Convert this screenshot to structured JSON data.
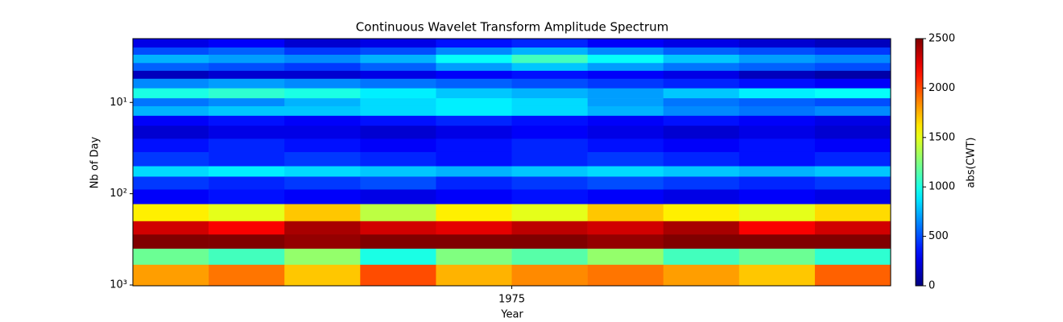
{
  "chart_data": {
    "type": "heatmap",
    "title": "Continuous Wavelet Transform Amplitude Spectrum",
    "xlabel": "Year",
    "ylabel": "Nb of Day",
    "colorbar_label": "abs(CWT)",
    "x_edges": [
      1970,
      1971,
      1972,
      1973,
      1974,
      1975,
      1976,
      1977,
      1978,
      1979,
      1980
    ],
    "y_edges": [
      2,
      2.5,
      3,
      3.7,
      4.5,
      5.5,
      7,
      9,
      11,
      14,
      18,
      25,
      35,
      50,
      65,
      90,
      130,
      200,
      280,
      400,
      600,
      1020
    ],
    "z": [
      [
        250,
        300,
        200,
        250,
        350,
        400,
        300,
        250,
        200,
        150
      ],
      [
        500,
        550,
        450,
        500,
        650,
        750,
        650,
        550,
        500,
        450
      ],
      [
        750,
        700,
        650,
        750,
        950,
        1100,
        950,
        800,
        700,
        650
      ],
      [
        550,
        500,
        450,
        550,
        700,
        800,
        700,
        600,
        550,
        500
      ],
      [
        150,
        200,
        200,
        250,
        300,
        350,
        300,
        250,
        150,
        100
      ],
      [
        650,
        700,
        650,
        600,
        550,
        500,
        450,
        400,
        350,
        300
      ],
      [
        1000,
        1050,
        1000,
        900,
        800,
        750,
        700,
        800,
        900,
        950
      ],
      [
        600,
        650,
        750,
        850,
        900,
        850,
        700,
        600,
        550,
        500
      ],
      [
        750,
        800,
        800,
        850,
        900,
        850,
        750,
        650,
        600,
        650
      ],
      [
        300,
        350,
        300,
        350,
        400,
        350,
        300,
        350,
        300,
        250
      ],
      [
        200,
        250,
        250,
        200,
        250,
        300,
        250,
        200,
        250,
        200
      ],
      [
        350,
        400,
        350,
        300,
        350,
        400,
        350,
        300,
        350,
        300
      ],
      [
        450,
        400,
        450,
        400,
        350,
        400,
        450,
        400,
        350,
        400
      ],
      [
        850,
        900,
        850,
        800,
        750,
        800,
        850,
        800,
        750,
        800
      ],
      [
        450,
        400,
        450,
        500,
        400,
        450,
        500,
        450,
        400,
        450
      ],
      [
        300,
        350,
        300,
        250,
        300,
        350,
        300,
        250,
        300,
        250
      ],
      [
        1600,
        1500,
        1700,
        1400,
        1600,
        1500,
        1700,
        1600,
        1500,
        1650
      ],
      [
        2300,
        2200,
        2400,
        2300,
        2250,
        2350,
        2300,
        2400,
        2200,
        2300
      ],
      [
        2500,
        2500,
        2450,
        2500,
        2500,
        2500,
        2450,
        2500,
        2500,
        2500
      ],
      [
        1200,
        1100,
        1300,
        1000,
        1250,
        1150,
        1300,
        1100,
        1200,
        1050
      ],
      [
        1800,
        1900,
        1700,
        2000,
        1750,
        1850,
        1900,
        1800,
        1700,
        1950
      ]
    ],
    "xlim": [
      1970,
      1980
    ],
    "xticks": [
      1975
    ],
    "ylim": [
      2,
      1020
    ],
    "ylog": true,
    "y_inverted": true,
    "yticks": [
      {
        "value": 10,
        "label": "10¹"
      },
      {
        "value": 100,
        "label": "10²"
      },
      {
        "value": 1000,
        "label": "10³"
      }
    ],
    "colormap": "jet",
    "clim": [
      0,
      2500
    ],
    "cticks": [
      0,
      500,
      1000,
      1500,
      2000,
      2500
    ]
  }
}
